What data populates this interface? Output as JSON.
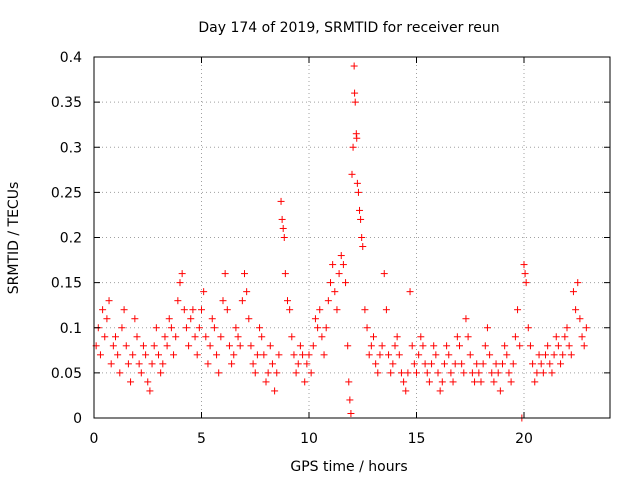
{
  "chart_data": {
    "type": "scatter",
    "title": "Day 174 of 2019, SRMTID for receiver reun",
    "xlabel": "GPS time / hours",
    "ylabel": "SRMTID / TECUs",
    "xlim": [
      0,
      24
    ],
    "ylim": [
      0,
      0.4
    ],
    "xticks": [
      0,
      5,
      10,
      15,
      20
    ],
    "xtick_labels": [
      "0",
      "5",
      "10",
      "15",
      "20"
    ],
    "yticks": [
      0,
      0.05,
      0.1,
      0.15,
      0.2,
      0.25,
      0.3,
      0.35,
      0.4
    ],
    "ytick_labels": [
      "0",
      "0.05",
      "0.1",
      "0.15",
      "0.2",
      "0.25",
      "0.3",
      "0.35",
      "0.4"
    ],
    "grid": true,
    "marker": "+",
    "color": "#ff0000",
    "series": [
      {
        "name": "SRMTID",
        "points": [
          [
            0.1,
            0.08
          ],
          [
            0.2,
            0.1
          ],
          [
            0.3,
            0.07
          ],
          [
            0.4,
            0.12
          ],
          [
            0.5,
            0.09
          ],
          [
            0.6,
            0.11
          ],
          [
            0.7,
            0.13
          ],
          [
            0.8,
            0.06
          ],
          [
            0.9,
            0.08
          ],
          [
            1.0,
            0.09
          ],
          [
            1.1,
            0.07
          ],
          [
            1.2,
            0.05
          ],
          [
            1.3,
            0.1
          ],
          [
            1.4,
            0.12
          ],
          [
            1.5,
            0.08
          ],
          [
            1.6,
            0.06
          ],
          [
            1.7,
            0.04
          ],
          [
            1.8,
            0.07
          ],
          [
            1.9,
            0.11
          ],
          [
            2.0,
            0.09
          ],
          [
            2.1,
            0.06
          ],
          [
            2.2,
            0.05
          ],
          [
            2.3,
            0.08
          ],
          [
            2.4,
            0.07
          ],
          [
            2.5,
            0.04
          ],
          [
            2.6,
            0.03
          ],
          [
            2.7,
            0.06
          ],
          [
            2.8,
            0.08
          ],
          [
            2.9,
            0.1
          ],
          [
            3.0,
            0.07
          ],
          [
            3.1,
            0.05
          ],
          [
            3.2,
            0.06
          ],
          [
            3.3,
            0.09
          ],
          [
            3.4,
            0.08
          ],
          [
            3.5,
            0.11
          ],
          [
            3.6,
            0.1
          ],
          [
            3.7,
            0.07
          ],
          [
            3.8,
            0.09
          ],
          [
            3.9,
            0.13
          ],
          [
            4.0,
            0.15
          ],
          [
            4.1,
            0.16
          ],
          [
            4.2,
            0.12
          ],
          [
            4.3,
            0.1
          ],
          [
            4.4,
            0.08
          ],
          [
            4.5,
            0.11
          ],
          [
            4.6,
            0.12
          ],
          [
            4.7,
            0.09
          ],
          [
            4.8,
            0.07
          ],
          [
            4.9,
            0.1
          ],
          [
            5.0,
            0.12
          ],
          [
            5.1,
            0.14
          ],
          [
            5.2,
            0.09
          ],
          [
            5.3,
            0.06
          ],
          [
            5.4,
            0.08
          ],
          [
            5.5,
            0.11
          ],
          [
            5.6,
            0.1
          ],
          [
            5.7,
            0.07
          ],
          [
            5.8,
            0.05
          ],
          [
            5.9,
            0.09
          ],
          [
            6.0,
            0.13
          ],
          [
            6.1,
            0.16
          ],
          [
            6.2,
            0.12
          ],
          [
            6.3,
            0.08
          ],
          [
            6.4,
            0.06
          ],
          [
            6.5,
            0.07
          ],
          [
            6.6,
            0.1
          ],
          [
            6.7,
            0.09
          ],
          [
            6.8,
            0.08
          ],
          [
            6.9,
            0.13
          ],
          [
            7.0,
            0.16
          ],
          [
            7.1,
            0.14
          ],
          [
            7.2,
            0.11
          ],
          [
            7.3,
            0.08
          ],
          [
            7.4,
            0.06
          ],
          [
            7.5,
            0.05
          ],
          [
            7.6,
            0.07
          ],
          [
            7.7,
            0.1
          ],
          [
            7.8,
            0.09
          ],
          [
            7.9,
            0.07
          ],
          [
            8.0,
            0.04
          ],
          [
            8.1,
            0.05
          ],
          [
            8.2,
            0.08
          ],
          [
            8.3,
            0.06
          ],
          [
            8.4,
            0.03
          ],
          [
            8.5,
            0.05
          ],
          [
            8.6,
            0.07
          ],
          [
            8.7,
            0.24
          ],
          [
            8.75,
            0.22
          ],
          [
            8.8,
            0.21
          ],
          [
            8.85,
            0.2
          ],
          [
            8.9,
            0.16
          ],
          [
            9.0,
            0.13
          ],
          [
            9.1,
            0.12
          ],
          [
            9.2,
            0.09
          ],
          [
            9.3,
            0.07
          ],
          [
            9.4,
            0.05
          ],
          [
            9.5,
            0.06
          ],
          [
            9.6,
            0.08
          ],
          [
            9.7,
            0.07
          ],
          [
            9.8,
            0.04
          ],
          [
            9.9,
            0.06
          ],
          [
            10.0,
            0.07
          ],
          [
            10.1,
            0.05
          ],
          [
            10.2,
            0.08
          ],
          [
            10.3,
            0.11
          ],
          [
            10.4,
            0.1
          ],
          [
            10.5,
            0.12
          ],
          [
            10.6,
            0.09
          ],
          [
            10.7,
            0.07
          ],
          [
            10.8,
            0.1
          ],
          [
            10.9,
            0.13
          ],
          [
            11.0,
            0.15
          ],
          [
            11.1,
            0.17
          ],
          [
            11.2,
            0.14
          ],
          [
            11.3,
            0.12
          ],
          [
            11.4,
            0.16
          ],
          [
            11.5,
            0.18
          ],
          [
            11.6,
            0.17
          ],
          [
            11.7,
            0.15
          ],
          [
            11.8,
            0.08
          ],
          [
            11.85,
            0.04
          ],
          [
            11.9,
            0.02
          ],
          [
            11.95,
            0.005
          ],
          [
            12.0,
            0.27
          ],
          [
            12.05,
            0.3
          ],
          [
            12.1,
            0.39
          ],
          [
            12.12,
            0.36
          ],
          [
            12.15,
            0.35
          ],
          [
            12.2,
            0.315
          ],
          [
            12.22,
            0.31
          ],
          [
            12.25,
            0.26
          ],
          [
            12.3,
            0.25
          ],
          [
            12.35,
            0.23
          ],
          [
            12.4,
            0.22
          ],
          [
            12.45,
            0.2
          ],
          [
            12.5,
            0.19
          ],
          [
            12.6,
            0.12
          ],
          [
            12.7,
            0.1
          ],
          [
            12.8,
            0.07
          ],
          [
            12.9,
            0.08
          ],
          [
            13.0,
            0.09
          ],
          [
            13.1,
            0.06
          ],
          [
            13.2,
            0.05
          ],
          [
            13.3,
            0.07
          ],
          [
            13.4,
            0.08
          ],
          [
            13.5,
            0.16
          ],
          [
            13.6,
            0.12
          ],
          [
            13.7,
            0.07
          ],
          [
            13.8,
            0.05
          ],
          [
            13.9,
            0.06
          ],
          [
            14.0,
            0.08
          ],
          [
            14.1,
            0.09
          ],
          [
            14.2,
            0.07
          ],
          [
            14.3,
            0.05
          ],
          [
            14.4,
            0.04
          ],
          [
            14.5,
            0.03
          ],
          [
            14.6,
            0.05
          ],
          [
            14.7,
            0.14
          ],
          [
            14.8,
            0.08
          ],
          [
            14.9,
            0.06
          ],
          [
            15.0,
            0.05
          ],
          [
            15.1,
            0.07
          ],
          [
            15.2,
            0.09
          ],
          [
            15.3,
            0.08
          ],
          [
            15.4,
            0.06
          ],
          [
            15.5,
            0.05
          ],
          [
            15.6,
            0.04
          ],
          [
            15.7,
            0.06
          ],
          [
            15.8,
            0.08
          ],
          [
            15.9,
            0.07
          ],
          [
            16.0,
            0.05
          ],
          [
            16.1,
            0.03
          ],
          [
            16.2,
            0.04
          ],
          [
            16.3,
            0.06
          ],
          [
            16.4,
            0.08
          ],
          [
            16.5,
            0.07
          ],
          [
            16.6,
            0.05
          ],
          [
            16.7,
            0.04
          ],
          [
            16.8,
            0.06
          ],
          [
            16.9,
            0.09
          ],
          [
            17.0,
            0.08
          ],
          [
            17.1,
            0.06
          ],
          [
            17.2,
            0.05
          ],
          [
            17.3,
            0.11
          ],
          [
            17.4,
            0.09
          ],
          [
            17.5,
            0.07
          ],
          [
            17.6,
            0.05
          ],
          [
            17.7,
            0.04
          ],
          [
            17.8,
            0.06
          ],
          [
            17.9,
            0.05
          ],
          [
            18.0,
            0.04
          ],
          [
            18.1,
            0.06
          ],
          [
            18.2,
            0.08
          ],
          [
            18.3,
            0.1
          ],
          [
            18.4,
            0.07
          ],
          [
            18.5,
            0.05
          ],
          [
            18.6,
            0.04
          ],
          [
            18.7,
            0.06
          ],
          [
            18.8,
            0.05
          ],
          [
            18.9,
            0.03
          ],
          [
            19.0,
            0.06
          ],
          [
            19.1,
            0.08
          ],
          [
            19.2,
            0.07
          ],
          [
            19.3,
            0.05
          ],
          [
            19.4,
            0.04
          ],
          [
            19.5,
            0.06
          ],
          [
            19.6,
            0.09
          ],
          [
            19.7,
            0.12
          ],
          [
            19.8,
            0.08
          ],
          [
            19.9,
            0.0
          ],
          [
            20.0,
            0.17
          ],
          [
            20.05,
            0.16
          ],
          [
            20.1,
            0.15
          ],
          [
            20.2,
            0.1
          ],
          [
            20.3,
            0.08
          ],
          [
            20.4,
            0.06
          ],
          [
            20.5,
            0.04
          ],
          [
            20.6,
            0.05
          ],
          [
            20.7,
            0.07
          ],
          [
            20.8,
            0.06
          ],
          [
            20.9,
            0.05
          ],
          [
            21.0,
            0.07
          ],
          [
            21.1,
            0.08
          ],
          [
            21.2,
            0.06
          ],
          [
            21.3,
            0.05
          ],
          [
            21.4,
            0.07
          ],
          [
            21.5,
            0.09
          ],
          [
            21.6,
            0.08
          ],
          [
            21.7,
            0.06
          ],
          [
            21.8,
            0.07
          ],
          [
            21.9,
            0.09
          ],
          [
            22.0,
            0.1
          ],
          [
            22.1,
            0.08
          ],
          [
            22.2,
            0.07
          ],
          [
            22.3,
            0.14
          ],
          [
            22.4,
            0.12
          ],
          [
            22.5,
            0.15
          ],
          [
            22.6,
            0.11
          ],
          [
            22.7,
            0.09
          ],
          [
            22.8,
            0.08
          ],
          [
            22.9,
            0.1
          ]
        ]
      }
    ]
  }
}
